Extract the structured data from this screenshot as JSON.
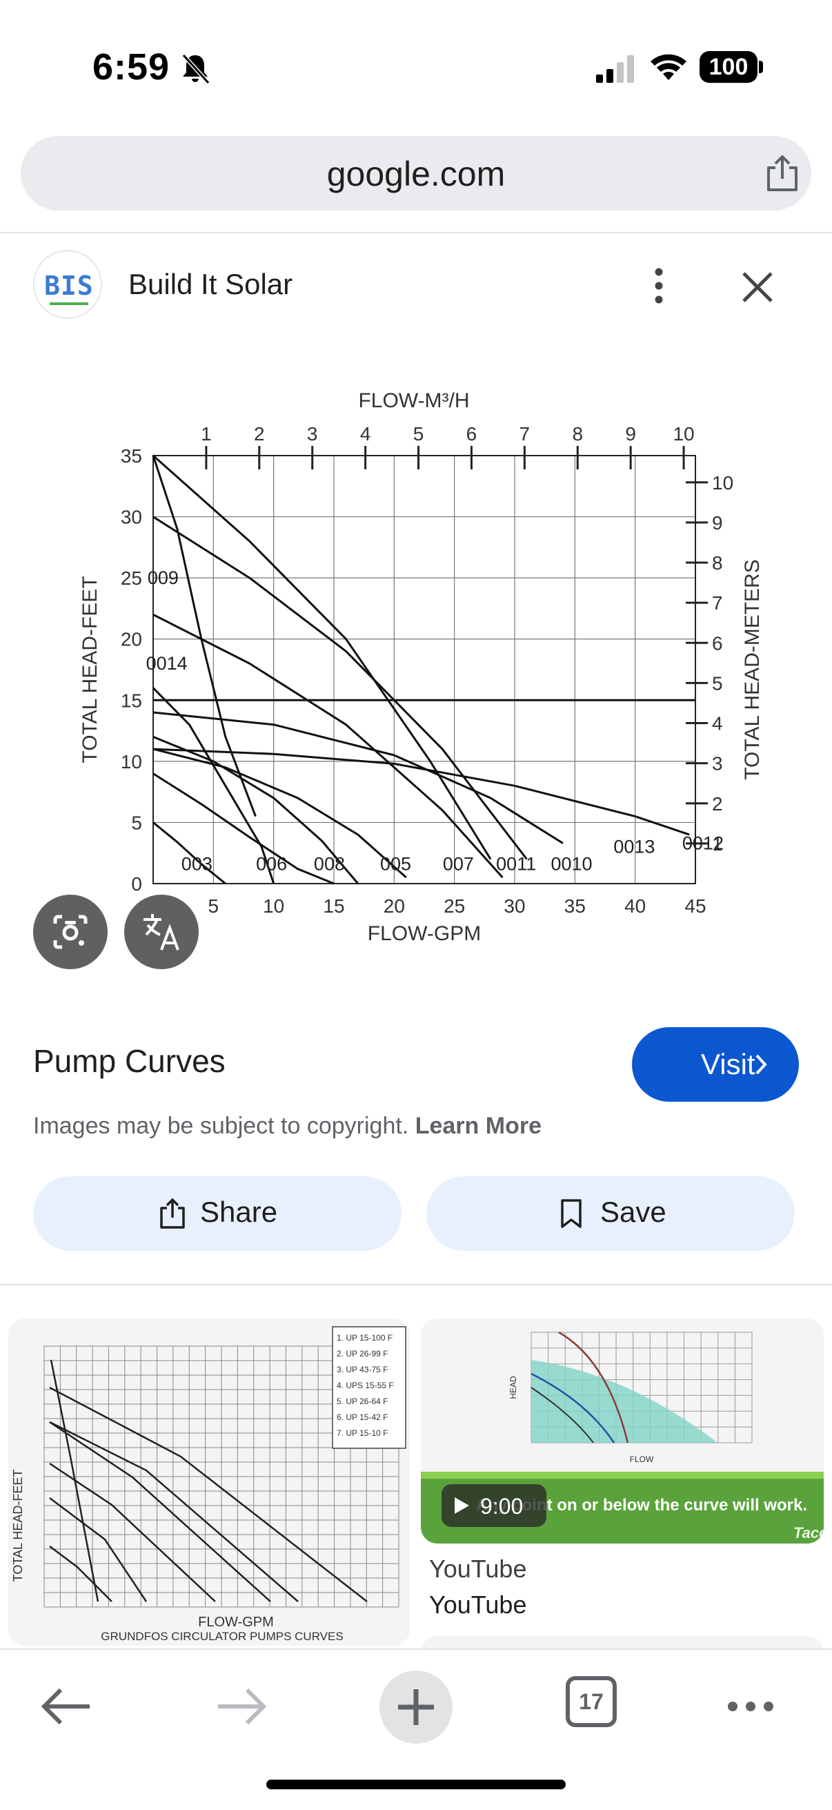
{
  "status_bar": {
    "time": "6:59",
    "battery": "100"
  },
  "url_bar": {
    "url": "google.com"
  },
  "source": {
    "logo_text": "BIS",
    "name": "Build It Solar"
  },
  "image": {
    "title": "Pump Curves",
    "visit_label": "Visit",
    "copyright_text": "Images may be subject to copyright.",
    "learn_more": "Learn More",
    "share_label": "Share",
    "save_label": "Save"
  },
  "chart_data": {
    "type": "line",
    "title": "",
    "xlabel": "FLOW-GPM",
    "ylabel": "TOTAL HEAD-FEET",
    "x2label": "FLOW-M³/H",
    "y2label": "TOTAL HEAD-METERS",
    "xlim": [
      0,
      45
    ],
    "ylim": [
      0,
      35
    ],
    "x_ticks": [
      "0",
      "5",
      "10",
      "15",
      "20",
      "25",
      "30",
      "35",
      "40",
      "45"
    ],
    "y_ticks": [
      "0",
      "5",
      "10",
      "15",
      "20",
      "25",
      "30",
      "35"
    ],
    "x2_ticks": [
      "1",
      "2",
      "3",
      "4",
      "5",
      "6",
      "7",
      "8",
      "9",
      "10"
    ],
    "y2_ticks": [
      "1",
      "2",
      "3",
      "4",
      "5",
      "6",
      "7",
      "8",
      "9",
      "10"
    ],
    "reference_line_y": 15,
    "grid": true,
    "series": [
      {
        "name": "003",
        "x": [
          0,
          2,
          4,
          6
        ],
        "y": [
          5,
          3.4,
          1.6,
          0
        ]
      },
      {
        "name": "009",
        "x": [
          0,
          2,
          4,
          6,
          8.5
        ],
        "y": [
          35,
          29,
          20,
          12,
          5.5
        ]
      },
      {
        "name": "0014",
        "x": [
          0,
          4,
          8,
          12,
          15
        ],
        "y": [
          9,
          6.5,
          3.8,
          1.2,
          0
        ]
      },
      {
        "name": "006",
        "x": [
          0,
          3,
          6,
          9,
          10
        ],
        "y": [
          16,
          13,
          8,
          3,
          0
        ]
      },
      {
        "name": "008",
        "x": [
          0,
          5,
          10,
          14,
          17
        ],
        "y": [
          12,
          10,
          7,
          3.5,
          0
        ]
      },
      {
        "name": "005",
        "x": [
          0,
          6,
          12,
          17,
          21
        ],
        "y": [
          11,
          9.5,
          7,
          4,
          0.5
        ]
      },
      {
        "name": "007",
        "x": [
          0,
          8,
          16,
          24,
          29
        ],
        "y": [
          22,
          18,
          13,
          6,
          0.5
        ]
      },
      {
        "name": "0011",
        "x": [
          0,
          8,
          16,
          23,
          28
        ],
        "y": [
          35,
          28,
          20,
          10,
          2
        ]
      },
      {
        "name": "0010",
        "x": [
          0,
          8,
          16,
          24,
          31
        ],
        "y": [
          30,
          25,
          19,
          11,
          2
        ]
      },
      {
        "name": "0013",
        "x": [
          0,
          10,
          20,
          28,
          34
        ],
        "y": [
          14,
          13,
          10.5,
          7,
          3.3
        ]
      },
      {
        "name": "0012",
        "x": [
          0,
          10,
          20,
          30,
          40,
          44.5
        ],
        "y": [
          11,
          10.6,
          9.8,
          8,
          5.5,
          4
        ]
      }
    ]
  },
  "related": {
    "card1_legend": [
      "1. UP 15-100 F",
      "2. UP 26-99 F",
      "3. UP 43-75 F",
      "4. UPS 15-55 F",
      "5. UP 26-64 F",
      "6. UP 15-42 F",
      "7. UP 15-10 F"
    ],
    "card1_ylabel": "TOTAL HEAD-FEET",
    "card1_xlabel": "FLOW-GPM",
    "card1_caption": "GRUNDFOS CIRCULATOR PUMPS CURVES",
    "card2_banner": "Any point on or below the curve will work.",
    "card2_ylabel": "HEAD",
    "card2_xlabel": "FLOW",
    "card2_brand": "Taco",
    "video_duration": "9:00",
    "card2_source": "YouTube",
    "card2_channel": "YouTube"
  },
  "toolbar": {
    "tab_count": "17"
  },
  "colors": {
    "accent": "#0b57d0",
    "chip_bg": "#e8f0fe",
    "lens_bg": "#5f6061"
  }
}
